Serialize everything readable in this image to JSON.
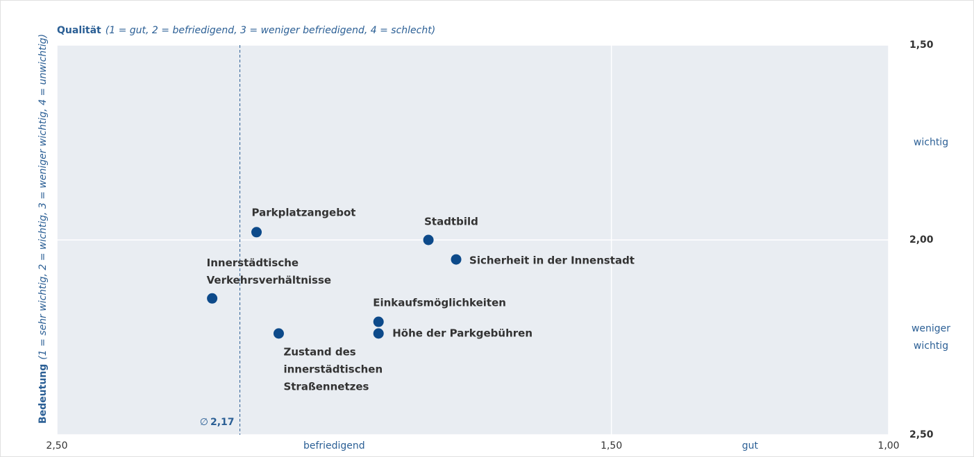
{
  "chart_data": {
    "type": "scatter",
    "x_label": "Qualität",
    "x_label_note": "(1 = gut, 2 = befriedigend, 3 = weniger befriedigend, 4 = schlecht)",
    "y_label": "Bedeutung",
    "y_label_note": "(1 = sehr wichtig, 2 = wichtig, 3 = weniger wichtig, 4 = unwichtig)",
    "xlim": [
      2.5,
      1.0
    ],
    "ylim": [
      2.5,
      1.5
    ],
    "xticks": [
      {
        "value": 2.5,
        "label": "2,50"
      },
      {
        "value": 1.5,
        "label": "1,50"
      },
      {
        "value": 1.0,
        "label": "1,00"
      }
    ],
    "yticks": [
      {
        "value": 1.5,
        "label": "1,50"
      },
      {
        "value": 2.0,
        "label": "2,00"
      },
      {
        "value": 2.5,
        "label": "2,50"
      }
    ],
    "x_region_labels": [
      {
        "value": 2.0,
        "label": "befriedigend"
      },
      {
        "value": 1.25,
        "label": "gut"
      }
    ],
    "y_region_labels": [
      {
        "value": 1.75,
        "label": [
          "wichtig"
        ]
      },
      {
        "value": 2.25,
        "label": [
          "weniger",
          "wichtig"
        ]
      }
    ],
    "mean_x": {
      "value": 2.17,
      "symbol": "∅",
      "label": "2,17"
    },
    "grid": true,
    "series": [
      {
        "color": "#0d4a8a",
        "x": [
          2.14,
          1.83,
          1.78,
          2.22,
          1.92,
          1.92,
          2.1
        ],
        "values": [
          1.98,
          2.0,
          2.05,
          2.15,
          2.21,
          2.24,
          2.24
        ],
        "labels": [
          [
            "Parkplatzangebot"
          ],
          [
            "Stadtbild"
          ],
          [
            "Sicherheit in der Innenstadt"
          ],
          [
            "Innerstädtische",
            "Verkehrsverhältnisse"
          ],
          [
            "Einkaufsmöglichkeiten"
          ],
          [
            "Höhe der Parkgebühren"
          ],
          [
            "Zustand des",
            "innerstädtischen",
            "Straßennetzes"
          ]
        ]
      }
    ]
  }
}
